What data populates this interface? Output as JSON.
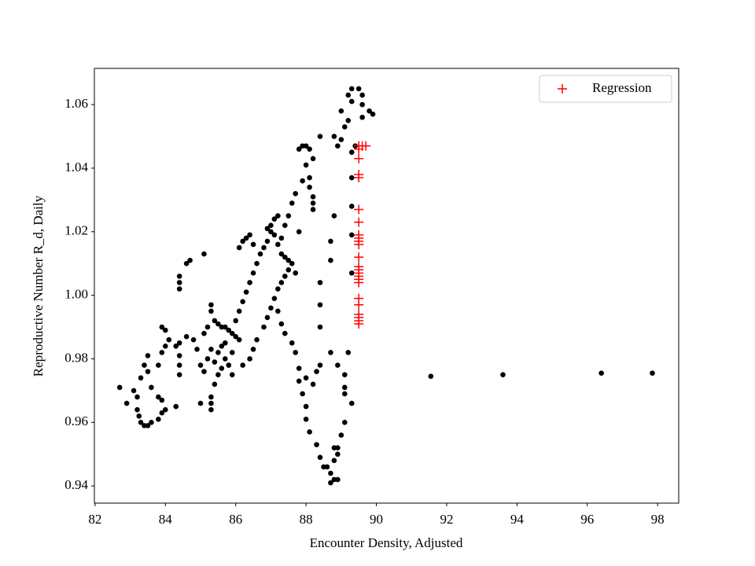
{
  "chart_data": {
    "type": "scatter",
    "xlabel": "Encounter Density, Adjusted",
    "ylabel": "Reproductive Number R_d, Daily",
    "xlim": [
      81.98,
      98.6
    ],
    "ylim": [
      0.9346,
      1.0714
    ],
    "xticks": [
      82,
      84,
      86,
      88,
      90,
      92,
      94,
      96,
      98
    ],
    "yticks": [
      0.94,
      0.96,
      0.98,
      {
        "value": 1,
        "label": "1.00"
      },
      1.02,
      1.04,
      1.06
    ],
    "legend": "upper right",
    "series": [
      {
        "color": "#000000",
        "marker": "o",
        "x": [
          82.7,
          82.9,
          83.1,
          83.2,
          83.2,
          83.25,
          83.3,
          83.4,
          83.5,
          83.6,
          83.8,
          83.9,
          84.0,
          83.9,
          83.8,
          83.6,
          83.5,
          83.4,
          83.3,
          83.5,
          83.8,
          83.9,
          84.0,
          83.9,
          84.0,
          84.1,
          84.3,
          84.4,
          84.3,
          84.4,
          84.4,
          84.4,
          84.4,
          84.4,
          84.4,
          84.6,
          84.7,
          84.6,
          84.8,
          84.9,
          85.0,
          85.1,
          85.0,
          85.2,
          85.3,
          85.1,
          85.3,
          85.3,
          85.3,
          85.4,
          85.5,
          85.6,
          85.7,
          85.8,
          85.4,
          85.5,
          85.6,
          85.7,
          85.8,
          85.9,
          86.0,
          86.1,
          85.3,
          85.3,
          85.2,
          85.1,
          85.5,
          85.4,
          85.6,
          85.7,
          85.8,
          85.9,
          85.9,
          86.0,
          86.1,
          86.2,
          86.3,
          86.4,
          86.5,
          86.6,
          86.7,
          86.8,
          86.9,
          86.5,
          86.3,
          86.1,
          86.2,
          86.4,
          86.2,
          86.4,
          86.5,
          86.6,
          86.8,
          86.9,
          87.0,
          87.1,
          87.2,
          87.3,
          87.4,
          87.5,
          87.0,
          87.0,
          87.1,
          87.2,
          87.1,
          86.9,
          87.2,
          87.3,
          87.3,
          87.4,
          87.5,
          87.6,
          87.7,
          87.4,
          87.5,
          87.6,
          87.7,
          87.9,
          88.0,
          87.8,
          87.9,
          88.0,
          88.1,
          88.2,
          88.1,
          88.1,
          88.2,
          88.2,
          88.2,
          87.8,
          87.2,
          87.3,
          87.4,
          87.6,
          87.7,
          87.8,
          87.8,
          87.9,
          88.0,
          88.0,
          88.1,
          88.3,
          88.4,
          88.6,
          88.7,
          88.8,
          88.7,
          88.9,
          88.8,
          88.9,
          88.8,
          88.5,
          88.0,
          88.2,
          88.3,
          88.4,
          88.7,
          88.9,
          89.1,
          89.1,
          89.1,
          89.3,
          89.1,
          89.0,
          88.9,
          89.2,
          88.4,
          88.4,
          88.4,
          88.7,
          88.7,
          88.8,
          88.8,
          88.4,
          88.9,
          89.0,
          89.1,
          89.2,
          89.0,
          89.2,
          89.3,
          89.5,
          89.6,
          89.6,
          89.8,
          89.6,
          89.9,
          89.3,
          89.3,
          89.3,
          89.3,
          89.3,
          89.3,
          89.4,
          91.55,
          93.6,
          96.4,
          97.85
        ],
        "values": [
          0.971,
          0.966,
          0.97,
          0.968,
          0.964,
          0.962,
          0.96,
          0.959,
          0.959,
          0.96,
          0.961,
          0.963,
          0.964,
          0.967,
          0.968,
          0.971,
          0.976,
          0.978,
          0.974,
          0.981,
          0.978,
          0.982,
          0.984,
          0.99,
          0.989,
          0.986,
          0.984,
          0.985,
          0.965,
          0.975,
          0.978,
          0.981,
          1.002,
          1.004,
          1.006,
          1.01,
          1.011,
          0.987,
          0.986,
          0.983,
          0.978,
          0.976,
          0.966,
          0.98,
          0.983,
          1.013,
          0.964,
          0.966,
          0.968,
          0.972,
          0.975,
          0.977,
          0.98,
          0.978,
          0.992,
          0.991,
          0.99,
          0.99,
          0.989,
          0.988,
          0.987,
          0.986,
          0.995,
          0.997,
          0.99,
          0.988,
          0.982,
          0.979,
          0.984,
          0.985,
          0.978,
          0.975,
          0.982,
          0.992,
          0.995,
          0.998,
          1.001,
          1.004,
          1.007,
          1.01,
          1.013,
          1.015,
          1.017,
          1.016,
          1.018,
          1.015,
          1.017,
          1.019,
          0.978,
          0.98,
          0.983,
          0.986,
          0.99,
          0.993,
          0.996,
          0.999,
          1.002,
          1.004,
          1.006,
          1.008,
          1.02,
          1.022,
          1.024,
          1.025,
          1.019,
          1.021,
          1.016,
          1.018,
          1.013,
          1.012,
          1.011,
          1.01,
          1.007,
          1.022,
          1.025,
          1.029,
          1.032,
          1.036,
          1.041,
          1.046,
          1.047,
          1.047,
          1.046,
          1.043,
          1.037,
          1.034,
          1.031,
          1.029,
          1.027,
          1.02,
          0.995,
          0.991,
          0.988,
          0.985,
          0.982,
          0.977,
          0.973,
          0.969,
          0.965,
          0.961,
          0.957,
          0.953,
          0.949,
          0.946,
          0.944,
          0.942,
          0.941,
          0.942,
          0.948,
          0.95,
          0.952,
          0.946,
          0.974,
          0.972,
          0.976,
          0.978,
          0.982,
          0.978,
          0.975,
          0.971,
          0.969,
          0.966,
          0.96,
          0.956,
          0.952,
          0.982,
          0.99,
          0.997,
          1.004,
          1.011,
          1.017,
          1.025,
          1.05,
          1.05,
          1.047,
          1.049,
          1.053,
          1.055,
          1.058,
          1.063,
          1.065,
          1.065,
          1.063,
          1.06,
          1.058,
          1.056,
          1.057,
          1.061,
          1.007,
          1.019,
          1.028,
          1.037,
          1.045,
          1.047,
          0.9745,
          0.975,
          0.9755,
          0.9755
        ]
      },
      {
        "name": "Regression",
        "color": "#ff0000",
        "marker": "+",
        "x": [
          89.5,
          89.5,
          89.5,
          89.5,
          89.5,
          89.5,
          89.5,
          89.5,
          89.5,
          89.5,
          89.5,
          89.5,
          89.5,
          89.5,
          89.5,
          89.5,
          89.5,
          89.5,
          89.5,
          89.5,
          89.5,
          89.5,
          89.5,
          89.5,
          89.6,
          89.7
        ],
        "values": [
          1.047,
          1.046,
          1.043,
          1.038,
          1.037,
          1.027,
          1.023,
          1.019,
          1.018,
          1.017,
          1.016,
          1.012,
          1.009,
          1.008,
          1.007,
          1.006,
          1.005,
          1.004,
          0.999,
          0.997,
          0.994,
          0.993,
          0.992,
          0.991,
          1.047,
          1.047
        ]
      }
    ]
  }
}
